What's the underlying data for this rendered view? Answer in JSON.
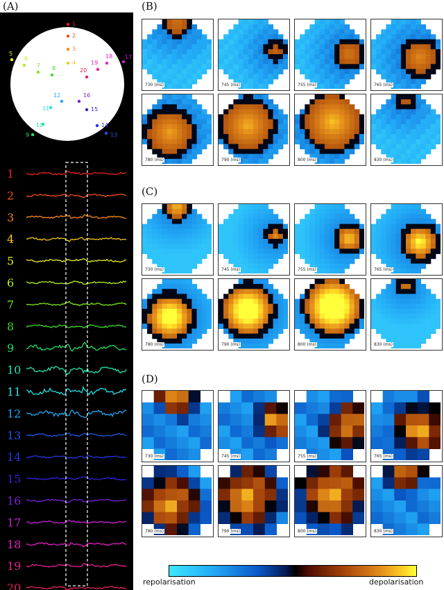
{
  "panels": {
    "a": "(A)",
    "b": "(B)",
    "c": "(C)",
    "d": "(D)"
  },
  "electrodes": [
    {
      "label": "1",
      "color": "#e8211f"
    },
    {
      "label": "2",
      "color": "#f04e1e"
    },
    {
      "label": "3",
      "color": "#f7861f"
    },
    {
      "label": "4",
      "color": "#f7c917"
    },
    {
      "label": "5",
      "color": "#e5f020"
    },
    {
      "label": "6",
      "color": "#b6ef25"
    },
    {
      "label": "7",
      "color": "#7fe61f"
    },
    {
      "label": "8",
      "color": "#40dc2a"
    },
    {
      "label": "9",
      "color": "#23e067"
    },
    {
      "label": "10",
      "color": "#23e4b0"
    },
    {
      "label": "11",
      "color": "#22e2e6"
    },
    {
      "label": "12",
      "color": "#20a6ef"
    },
    {
      "label": "13",
      "color": "#1f58e6"
    },
    {
      "label": "14",
      "color": "#2336e0"
    },
    {
      "label": "15",
      "color": "#3420d8"
    },
    {
      "label": "16",
      "color": "#7a1fd6"
    },
    {
      "label": "17",
      "color": "#c81fd2"
    },
    {
      "label": "18",
      "color": "#e41fbf"
    },
    {
      "label": "19",
      "color": "#e91f92"
    },
    {
      "label": "20",
      "color": "#ea1f5c"
    }
  ],
  "times": [
    "730 (ms)",
    "745 (ms)",
    "755 (ms)",
    "765 (ms)",
    "780 (ms)",
    "790 (ms)",
    "800 (ms)",
    "830 (ms)"
  ],
  "colorbar": {
    "left_label": "repolarisation",
    "right_label": "depolarisation"
  }
}
